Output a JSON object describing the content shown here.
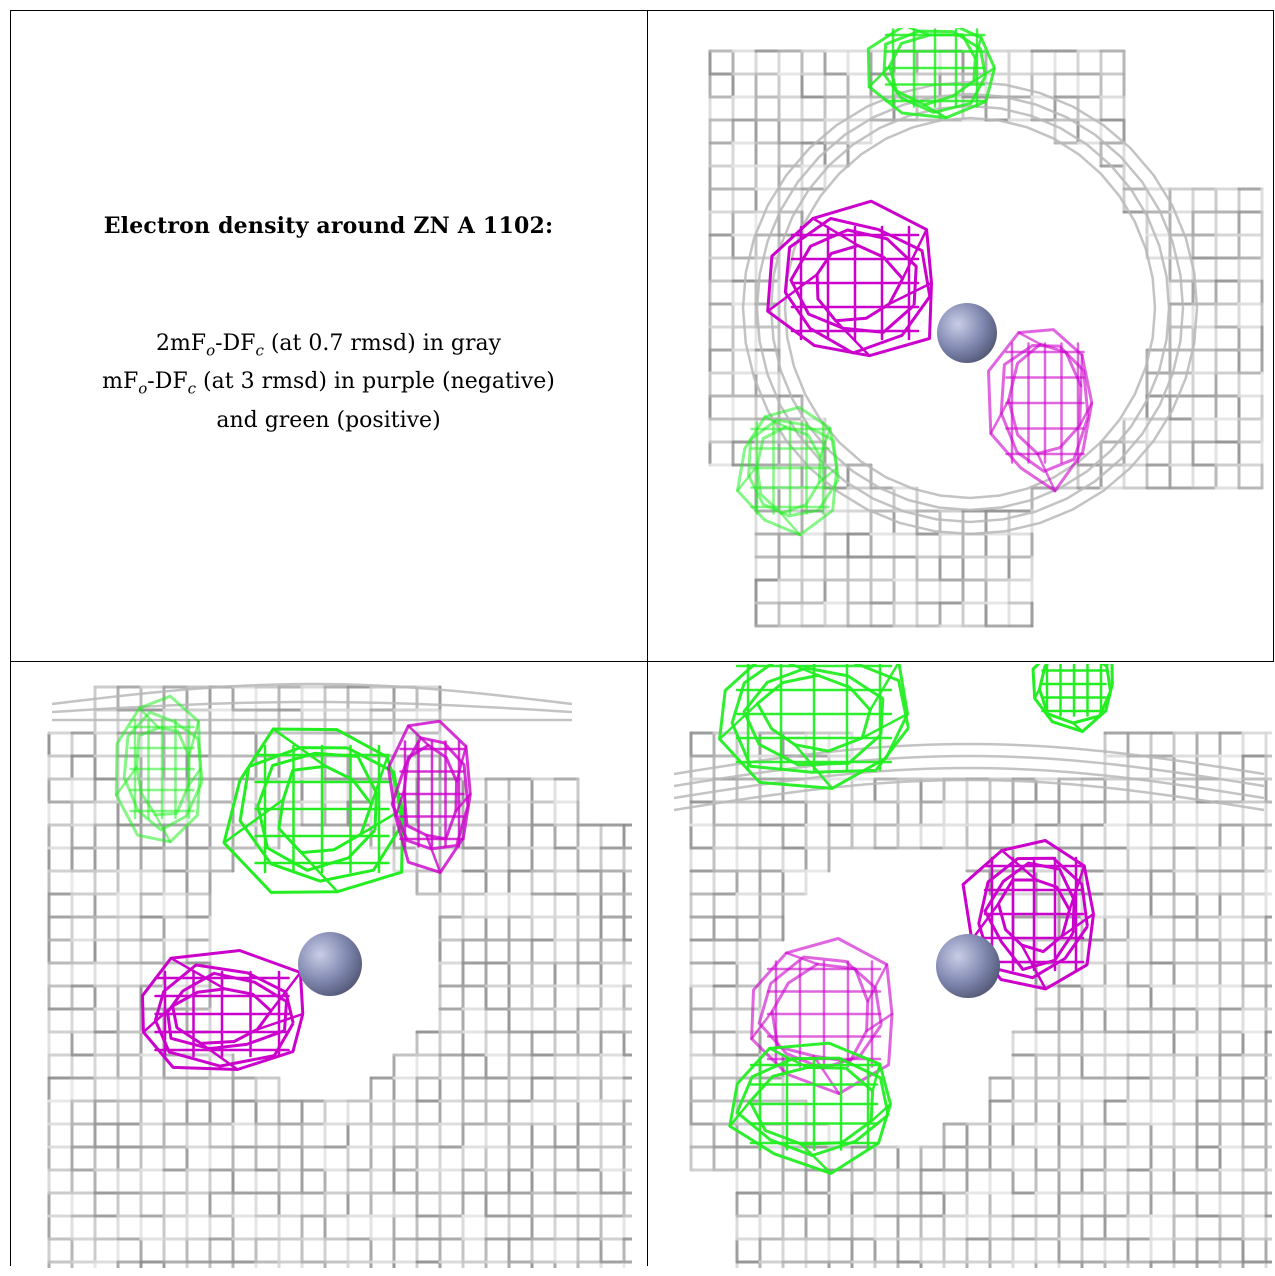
{
  "legend": {
    "title": "Electron density around ZN A 1102:",
    "line1": {
      "pre": "2mF",
      "sub1": "o",
      "mid": "-DF",
      "sub2": "c",
      "post": " (at 0.7 rmsd) in gray"
    },
    "line2": {
      "pre": "mF",
      "sub1": "o",
      "mid": "-DF",
      "sub2": "c",
      "post": " (at 3 rmsd) in purple (negative)"
    },
    "line3": "and green (positive)"
  },
  "colors": {
    "map_2fofc": "#9a9a9a",
    "map_fofc_negative": "#cc00cc",
    "map_fofc_positive": "#22ee22",
    "zinc_atom": "#8088b0"
  },
  "panels": [
    {
      "name": "view-top-right"
    },
    {
      "name": "view-bottom-left"
    },
    {
      "name": "view-bottom-right"
    }
  ]
}
